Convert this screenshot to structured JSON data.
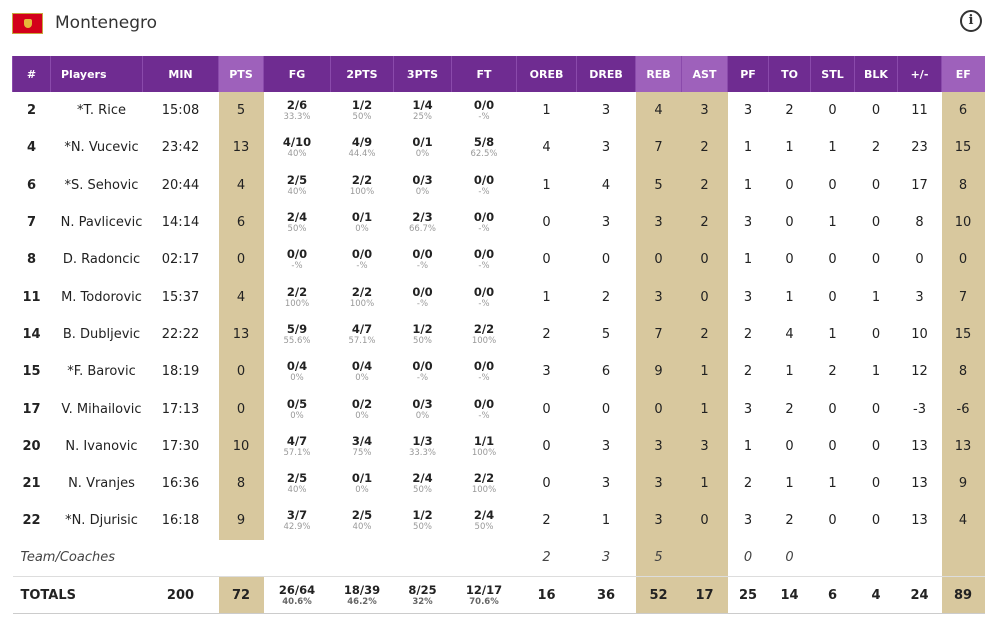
{
  "header": {
    "team_name": "Montenegro",
    "info_icon": "info-icon",
    "flag_icon": "montenegro-flag-icon"
  },
  "colors": {
    "header_bg": "#6f2c91",
    "header_highlight": "#9e61bb",
    "column_highlight": "#d8c89e"
  },
  "columns": [
    "#",
    "Players",
    "MIN",
    "PTS",
    "FG",
    "2PTS",
    "3PTS",
    "FT",
    "OREB",
    "DREB",
    "REB",
    "AST",
    "PF",
    "TO",
    "STL",
    "BLK",
    "+/-",
    "EF"
  ],
  "players": [
    {
      "num": "2",
      "name": "*T. Rice",
      "min": "15:08",
      "pts": "5",
      "fg": "2/6",
      "fg_pct": "33.3%",
      "p2": "1/2",
      "p2_pct": "50%",
      "p3": "1/4",
      "p3_pct": "25%",
      "ft": "0/0",
      "ft_pct": "-%",
      "oreb": "1",
      "dreb": "3",
      "reb": "4",
      "ast": "3",
      "pf": "3",
      "to": "2",
      "stl": "0",
      "blk": "0",
      "pm": "11",
      "ef": "6"
    },
    {
      "num": "4",
      "name": "*N. Vucevic",
      "min": "23:42",
      "pts": "13",
      "fg": "4/10",
      "fg_pct": "40%",
      "p2": "4/9",
      "p2_pct": "44.4%",
      "p3": "0/1",
      "p3_pct": "0%",
      "ft": "5/8",
      "ft_pct": "62.5%",
      "oreb": "4",
      "dreb": "3",
      "reb": "7",
      "ast": "2",
      "pf": "1",
      "to": "1",
      "stl": "1",
      "blk": "2",
      "pm": "23",
      "ef": "15"
    },
    {
      "num": "6",
      "name": "*S. Sehovic",
      "min": "20:44",
      "pts": "4",
      "fg": "2/5",
      "fg_pct": "40%",
      "p2": "2/2",
      "p2_pct": "100%",
      "p3": "0/3",
      "p3_pct": "0%",
      "ft": "0/0",
      "ft_pct": "-%",
      "oreb": "1",
      "dreb": "4",
      "reb": "5",
      "ast": "2",
      "pf": "1",
      "to": "0",
      "stl": "0",
      "blk": "0",
      "pm": "17",
      "ef": "8"
    },
    {
      "num": "7",
      "name": "N. Pavlicevic",
      "min": "14:14",
      "pts": "6",
      "fg": "2/4",
      "fg_pct": "50%",
      "p2": "0/1",
      "p2_pct": "0%",
      "p3": "2/3",
      "p3_pct": "66.7%",
      "ft": "0/0",
      "ft_pct": "-%",
      "oreb": "0",
      "dreb": "3",
      "reb": "3",
      "ast": "2",
      "pf": "3",
      "to": "0",
      "stl": "1",
      "blk": "0",
      "pm": "8",
      "ef": "10"
    },
    {
      "num": "8",
      "name": "D. Radoncic",
      "min": "02:17",
      "pts": "0",
      "fg": "0/0",
      "fg_pct": "-%",
      "p2": "0/0",
      "p2_pct": "-%",
      "p3": "0/0",
      "p3_pct": "-%",
      "ft": "0/0",
      "ft_pct": "-%",
      "oreb": "0",
      "dreb": "0",
      "reb": "0",
      "ast": "0",
      "pf": "1",
      "to": "0",
      "stl": "0",
      "blk": "0",
      "pm": "0",
      "ef": "0"
    },
    {
      "num": "11",
      "name": "M. Todorovic",
      "min": "15:37",
      "pts": "4",
      "fg": "2/2",
      "fg_pct": "100%",
      "p2": "2/2",
      "p2_pct": "100%",
      "p3": "0/0",
      "p3_pct": "-%",
      "ft": "0/0",
      "ft_pct": "-%",
      "oreb": "1",
      "dreb": "2",
      "reb": "3",
      "ast": "0",
      "pf": "3",
      "to": "1",
      "stl": "0",
      "blk": "1",
      "pm": "3",
      "ef": "7"
    },
    {
      "num": "14",
      "name": "B. Dubljevic",
      "min": "22:22",
      "pts": "13",
      "fg": "5/9",
      "fg_pct": "55.6%",
      "p2": "4/7",
      "p2_pct": "57.1%",
      "p3": "1/2",
      "p3_pct": "50%",
      "ft": "2/2",
      "ft_pct": "100%",
      "oreb": "2",
      "dreb": "5",
      "reb": "7",
      "ast": "2",
      "pf": "2",
      "to": "4",
      "stl": "1",
      "blk": "0",
      "pm": "10",
      "ef": "15"
    },
    {
      "num": "15",
      "name": "*F. Barovic",
      "min": "18:19",
      "pts": "0",
      "fg": "0/4",
      "fg_pct": "0%",
      "p2": "0/4",
      "p2_pct": "0%",
      "p3": "0/0",
      "p3_pct": "-%",
      "ft": "0/0",
      "ft_pct": "-%",
      "oreb": "3",
      "dreb": "6",
      "reb": "9",
      "ast": "1",
      "pf": "2",
      "to": "1",
      "stl": "2",
      "blk": "1",
      "pm": "12",
      "ef": "8"
    },
    {
      "num": "17",
      "name": "V. Mihailovic",
      "min": "17:13",
      "pts": "0",
      "fg": "0/5",
      "fg_pct": "0%",
      "p2": "0/2",
      "p2_pct": "0%",
      "p3": "0/3",
      "p3_pct": "0%",
      "ft": "0/0",
      "ft_pct": "-%",
      "oreb": "0",
      "dreb": "0",
      "reb": "0",
      "ast": "1",
      "pf": "3",
      "to": "2",
      "stl": "0",
      "blk": "0",
      "pm": "-3",
      "ef": "-6"
    },
    {
      "num": "20",
      "name": "N. Ivanovic",
      "min": "17:30",
      "pts": "10",
      "fg": "4/7",
      "fg_pct": "57.1%",
      "p2": "3/4",
      "p2_pct": "75%",
      "p3": "1/3",
      "p3_pct": "33.3%",
      "ft": "1/1",
      "ft_pct": "100%",
      "oreb": "0",
      "dreb": "3",
      "reb": "3",
      "ast": "3",
      "pf": "1",
      "to": "0",
      "stl": "0",
      "blk": "0",
      "pm": "13",
      "ef": "13"
    },
    {
      "num": "21",
      "name": "N. Vranjes",
      "min": "16:36",
      "pts": "8",
      "fg": "2/5",
      "fg_pct": "40%",
      "p2": "0/1",
      "p2_pct": "0%",
      "p3": "2/4",
      "p3_pct": "50%",
      "ft": "2/2",
      "ft_pct": "100%",
      "oreb": "0",
      "dreb": "3",
      "reb": "3",
      "ast": "1",
      "pf": "2",
      "to": "1",
      "stl": "1",
      "blk": "0",
      "pm": "13",
      "ef": "9"
    },
    {
      "num": "22",
      "name": "*N. Djurisic",
      "min": "16:18",
      "pts": "9",
      "fg": "3/7",
      "fg_pct": "42.9%",
      "p2": "2/5",
      "p2_pct": "40%",
      "p3": "1/2",
      "p3_pct": "50%",
      "ft": "2/4",
      "ft_pct": "50%",
      "oreb": "2",
      "dreb": "1",
      "reb": "3",
      "ast": "0",
      "pf": "3",
      "to": "2",
      "stl": "0",
      "blk": "0",
      "pm": "13",
      "ef": "4"
    }
  ],
  "team_coaches": {
    "label": "Team/Coaches",
    "oreb": "2",
    "dreb": "3",
    "reb": "5",
    "pf": "0",
    "to": "0"
  },
  "totals": {
    "label": "TOTALS",
    "min": "200",
    "pts": "72",
    "fg": "26/64",
    "fg_pct": "40.6%",
    "p2": "18/39",
    "p2_pct": "46.2%",
    "p3": "8/25",
    "p3_pct": "32%",
    "ft": "12/17",
    "ft_pct": "70.6%",
    "oreb": "16",
    "dreb": "36",
    "reb": "52",
    "ast": "17",
    "pf": "25",
    "to": "14",
    "stl": "6",
    "blk": "4",
    "pm": "24",
    "ef": "89"
  }
}
